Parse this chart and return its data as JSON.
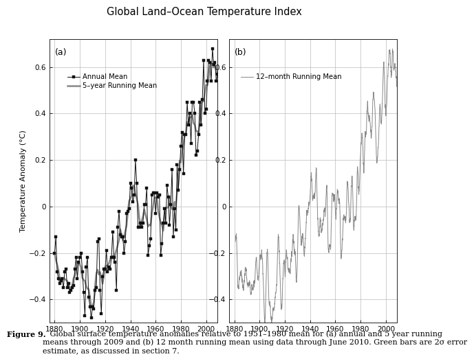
{
  "title": "Global Land–Ocean Temperature Index",
  "ylabel": "Temperature Anomaly (°C)",
  "label_a": "(a)",
  "label_b": "(b)",
  "legend_annual": "Annual Mean",
  "legend_5yr": "5–year Running Mean",
  "legend_12mo": "12–month Running Mean",
  "ylim": [
    -0.5,
    0.72
  ],
  "yticks": [
    -0.4,
    -0.2,
    0.0,
    0.2,
    0.4,
    0.6
  ],
  "xlim": [
    1876,
    2009
  ],
  "xticks": [
    1880,
    1900,
    1920,
    1940,
    1960,
    1980,
    2000
  ],
  "annual_color": "#111111",
  "running5_color": "#888888",
  "running12_color": "#888888",
  "background_color": "#ffffff",
  "grid_color": "#bbbbbb",
  "caption_bold": "Figure 9.",
  "caption_rest": "   Global surface temperature anomalies relative to 1951–1980 mean for (a) annual and 5 year running\nmeans through 2009 and (b) 12 month running mean using data through June 2010. Green bars are 2σ error\nestimate, as discussed in section 7.",
  "annual_years": [
    1880,
    1881,
    1882,
    1883,
    1884,
    1885,
    1886,
    1887,
    1888,
    1889,
    1890,
    1891,
    1892,
    1893,
    1894,
    1895,
    1896,
    1897,
    1898,
    1899,
    1900,
    1901,
    1902,
    1903,
    1904,
    1905,
    1906,
    1907,
    1908,
    1909,
    1910,
    1911,
    1912,
    1913,
    1914,
    1915,
    1916,
    1917,
    1918,
    1919,
    1920,
    1921,
    1922,
    1923,
    1924,
    1925,
    1926,
    1927,
    1928,
    1929,
    1930,
    1931,
    1932,
    1933,
    1934,
    1935,
    1936,
    1937,
    1938,
    1939,
    1940,
    1941,
    1942,
    1943,
    1944,
    1945,
    1946,
    1947,
    1948,
    1949,
    1950,
    1951,
    1952,
    1953,
    1954,
    1955,
    1956,
    1957,
    1958,
    1959,
    1960,
    1961,
    1962,
    1963,
    1964,
    1965,
    1966,
    1967,
    1968,
    1969,
    1970,
    1971,
    1972,
    1973,
    1974,
    1975,
    1976,
    1977,
    1978,
    1979,
    1980,
    1981,
    1982,
    1983,
    1984,
    1985,
    1986,
    1987,
    1988,
    1989,
    1990,
    1991,
    1992,
    1993,
    1994,
    1995,
    1996,
    1997,
    1998,
    1999,
    2000,
    2001,
    2002,
    2003,
    2004,
    2005,
    2006,
    2007,
    2008,
    2009
  ],
  "annual_vals": [
    -0.2,
    -0.13,
    -0.28,
    -0.31,
    -0.33,
    -0.32,
    -0.31,
    -0.35,
    -0.28,
    -0.27,
    -0.35,
    -0.33,
    -0.37,
    -0.36,
    -0.35,
    -0.34,
    -0.27,
    -0.22,
    -0.31,
    -0.24,
    -0.22,
    -0.2,
    -0.28,
    -0.37,
    -0.47,
    -0.26,
    -0.22,
    -0.39,
    -0.43,
    -0.48,
    -0.43,
    -0.44,
    -0.36,
    -0.35,
    -0.15,
    -0.14,
    -0.36,
    -0.46,
    -0.3,
    -0.27,
    -0.27,
    -0.19,
    -0.28,
    -0.26,
    -0.27,
    -0.22,
    -0.11,
    -0.22,
    -0.24,
    -0.36,
    -0.09,
    -0.02,
    -0.12,
    -0.13,
    -0.13,
    -0.2,
    -0.15,
    -0.03,
    -0.02,
    -0.01,
    0.1,
    0.08,
    0.02,
    0.05,
    0.2,
    0.1,
    -0.09,
    -0.09,
    -0.07,
    -0.09,
    -0.07,
    0.01,
    0.01,
    0.08,
    -0.21,
    -0.17,
    -0.14,
    0.05,
    0.06,
    0.06,
    -0.03,
    0.06,
    0.04,
    0.05,
    -0.21,
    -0.16,
    -0.07,
    -0.01,
    -0.07,
    0.09,
    0.04,
    -0.08,
    0.01,
    0.16,
    -0.13,
    -0.01,
    -0.1,
    0.18,
    0.07,
    0.16,
    0.26,
    0.32,
    0.14,
    0.31,
    0.31,
    0.45,
    0.35,
    0.4,
    0.27,
    0.45,
    0.45,
    0.4,
    0.22,
    0.24,
    0.31,
    0.45,
    0.35,
    0.46,
    0.63,
    0.4,
    0.42,
    0.54,
    0.63,
    0.62,
    0.54,
    0.68,
    0.61,
    0.62,
    0.54,
    0.57
  ]
}
